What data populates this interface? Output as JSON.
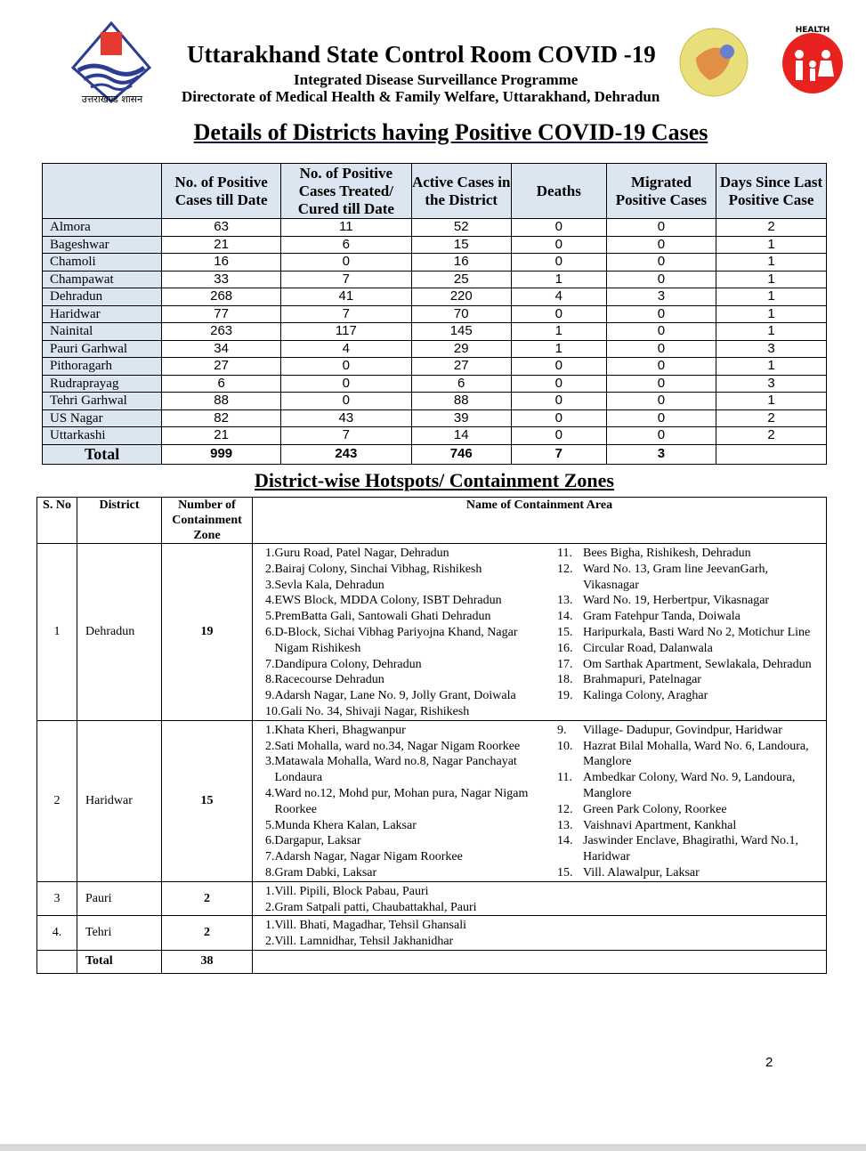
{
  "header": {
    "title": "Uttarakhand State Control Room COVID -19",
    "subtitle1": "Integrated Disease Surveillance Programme",
    "subtitle2": "Directorate of Medical Health & Family Welfare, Uttarakhand, Dehradun",
    "logo_left_text": "उत्तराखण्ड शासन",
    "logo_right_text": "NATIONAL HEALTH MISSION"
  },
  "cases": {
    "heading": "Details of Districts having Positive COVID-19 Cases",
    "columns": [
      "",
      "No. of Positive Cases till Date",
      "No. of Positive Cases Treated/ Cured till Date",
      "Active Cases in the District",
      "Deaths",
      "Migrated Positive Cases",
      "Days Since Last Positive Case"
    ],
    "rows": [
      [
        "Almora",
        "63",
        "11",
        "52",
        "0",
        "0",
        "2"
      ],
      [
        "Bageshwar",
        "21",
        "6",
        "15",
        "0",
        "0",
        "1"
      ],
      [
        "Chamoli",
        "16",
        "0",
        "16",
        "0",
        "0",
        "1"
      ],
      [
        "Champawat",
        "33",
        "7",
        "25",
        "1",
        "0",
        "1"
      ],
      [
        "Dehradun",
        "268",
        "41",
        "220",
        "4",
        "3",
        "1"
      ],
      [
        "Haridwar",
        "77",
        "7",
        "70",
        "0",
        "0",
        "1"
      ],
      [
        "Nainital",
        "263",
        "117",
        "145",
        "1",
        "0",
        "1"
      ],
      [
        "Pauri Garhwal",
        "34",
        "4",
        "29",
        "1",
        "0",
        "3"
      ],
      [
        "Pithoragarh",
        "27",
        "0",
        "27",
        "0",
        "0",
        "1"
      ],
      [
        "Rudraprayag",
        "6",
        "0",
        "6",
        "0",
        "0",
        "3"
      ],
      [
        "Tehri Garhwal",
        "88",
        "0",
        "88",
        "0",
        "0",
        "1"
      ],
      [
        "US Nagar",
        "82",
        "43",
        "39",
        "0",
        "0",
        "2"
      ],
      [
        "Uttarkashi",
        "21",
        "7",
        "14",
        "0",
        "0",
        "2"
      ]
    ],
    "total": [
      "Total",
      "999",
      "243",
      "746",
      "7",
      "3",
      ""
    ]
  },
  "zones": {
    "heading": "District-wise Hotspots/ Containment Zones",
    "columns": [
      "S. No",
      "District",
      "Number of Containment Zone",
      "Name of Containment Area"
    ],
    "rows": [
      {
        "sno": "1",
        "district": "Dehradun",
        "count": "19",
        "left": [
          [
            "1.",
            "Guru Road, Patel Nagar, Dehradun"
          ],
          [
            "2.",
            "Bairaj Colony, Sinchai Vibhag, Rishikesh"
          ],
          [
            "3.",
            "Sevla Kala, Dehradun"
          ],
          [
            "4.",
            "EWS Block, MDDA Colony, ISBT Dehradun"
          ],
          [
            "5.",
            "PremBatta Gali, Santowali Ghati Dehradun"
          ],
          [
            "6.",
            "D-Block, Sichai Vibhag Pariyojna Khand, Nagar Nigam Rishikesh"
          ],
          [
            "7.",
            "Dandipura Colony, Dehradun"
          ],
          [
            "8.",
            "Racecourse Dehradun"
          ],
          [
            "9.",
            "Adarsh Nagar, Lane No. 9, Jolly Grant, Doiwala"
          ],
          [
            "10.",
            "  Gali No. 34, Shivaji Nagar, Rishikesh"
          ]
        ],
        "right": [
          [
            "11.",
            "Bees Bigha, Rishikesh, Dehradun"
          ],
          [
            "12.",
            "Ward No. 13, Gram line JeevanGarh, Vikasnagar"
          ],
          [
            "13.",
            "Ward No. 19, Herbertpur, Vikasnagar"
          ],
          [
            "14.",
            "Gram Fatehpur Tanda, Doiwala"
          ],
          [
            "15.",
            "Haripurkala, Basti Ward No 2, Motichur Line"
          ],
          [
            "16.",
            "Circular Road, Dalanwala"
          ],
          [
            "17.",
            "Om Sarthak Apartment, Sewlakala, Dehradun"
          ],
          [
            "18.",
            "Brahmapuri, Patelnagar"
          ],
          [
            "19.",
            "Kalinga Colony, Araghar"
          ]
        ]
      },
      {
        "sno": "2",
        "district": "Haridwar",
        "count": "15",
        "left": [
          [
            "1.",
            "Khata Kheri, Bhagwanpur"
          ],
          [
            "2.",
            "Sati Mohalla, ward no.34, Nagar Nigam Roorkee"
          ],
          [
            "3.",
            "Matawala Mohalla, Ward no.8, Nagar Panchayat Londaura"
          ],
          [
            "4.",
            "Ward no.12, Mohd pur, Mohan pura, Nagar Nigam Roorkee"
          ],
          [
            "5.",
            "Munda Khera Kalan, Laksar"
          ],
          [
            "6.",
            "Dargapur, Laksar"
          ],
          [
            "7.",
            "Adarsh Nagar, Nagar Nigam Roorkee"
          ],
          [
            "8.",
            "Gram Dabki, Laksar"
          ]
        ],
        "right": [
          [
            "9.",
            "Village- Dadupur, Govindpur, Haridwar"
          ],
          [
            "10.",
            "Hazrat Bilal Mohalla, Ward No. 6, Landoura, Manglore"
          ],
          [
            "11.",
            "Ambedkar Colony, Ward No. 9, Landoura, Manglore"
          ],
          [
            "12.",
            "Green Park Colony, Roorkee"
          ],
          [
            "13.",
            "Vaishnavi Apartment, Kankhal"
          ],
          [
            "14.",
            "Jaswinder Enclave, Bhagirathi, Ward No.1, Haridwar"
          ],
          [
            "15.",
            "Vill. Alawalpur, Laksar"
          ]
        ]
      },
      {
        "sno": "3",
        "district": "Pauri",
        "count": "2",
        "left": [
          [
            "1.",
            "Vill. Pipili, Block Pabau, Pauri"
          ],
          [
            "2.",
            "Gram Satpali patti, Chaubattakhal, Pauri"
          ]
        ],
        "right": []
      },
      {
        "sno": "4.",
        "district": "Tehri",
        "count": "2",
        "left": [
          [
            "1.",
            "Vill. Bhati, Magadhar, Tehsil Ghansali"
          ],
          [
            "2.",
            "Vill. Lamnidhar, Tehsil Jakhanidhar"
          ]
        ],
        "right": []
      }
    ],
    "total": {
      "label": "Total",
      "count": "38"
    }
  },
  "page_number": "2",
  "colors": {
    "header_fill": "#dce6f1",
    "nhm_red": "#e8231f"
  }
}
